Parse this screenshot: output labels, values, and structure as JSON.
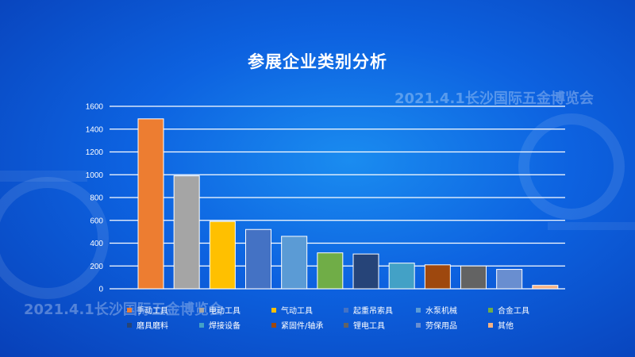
{
  "watermark": "2021.4.1长沙国际五金博览会",
  "colors": {
    "grid": "#ffffff",
    "tick_text": "#ffffff",
    "background_start": "#1a8cf0",
    "background_end": "#0840b8"
  },
  "chart_data": {
    "type": "bar",
    "title": "参展企业类别分析",
    "xlabel": "",
    "ylabel": "",
    "ylim": [
      0,
      1600
    ],
    "yticks": [
      0,
      200,
      400,
      600,
      800,
      1000,
      1200,
      1400,
      1600
    ],
    "grid": true,
    "legend_position": "bottom",
    "categories": [
      "手动工具",
      "电动工具",
      "气动工具",
      "起重吊索具",
      "水泵机械",
      "合金工具",
      "磨具磨料",
      "焊接设备",
      "紧固件/轴承",
      "锂电工具",
      "劳保用品",
      "其他"
    ],
    "values": [
      1490,
      990,
      590,
      520,
      460,
      315,
      305,
      225,
      210,
      200,
      170,
      30
    ],
    "bar_colors": [
      "#ed7d31",
      "#a5a5a5",
      "#ffc000",
      "#4472c4",
      "#5b9bd5",
      "#70ad47",
      "#264478",
      "#43a1c6",
      "#9e480e",
      "#636363",
      "#698ed0",
      "#f4b183"
    ]
  }
}
